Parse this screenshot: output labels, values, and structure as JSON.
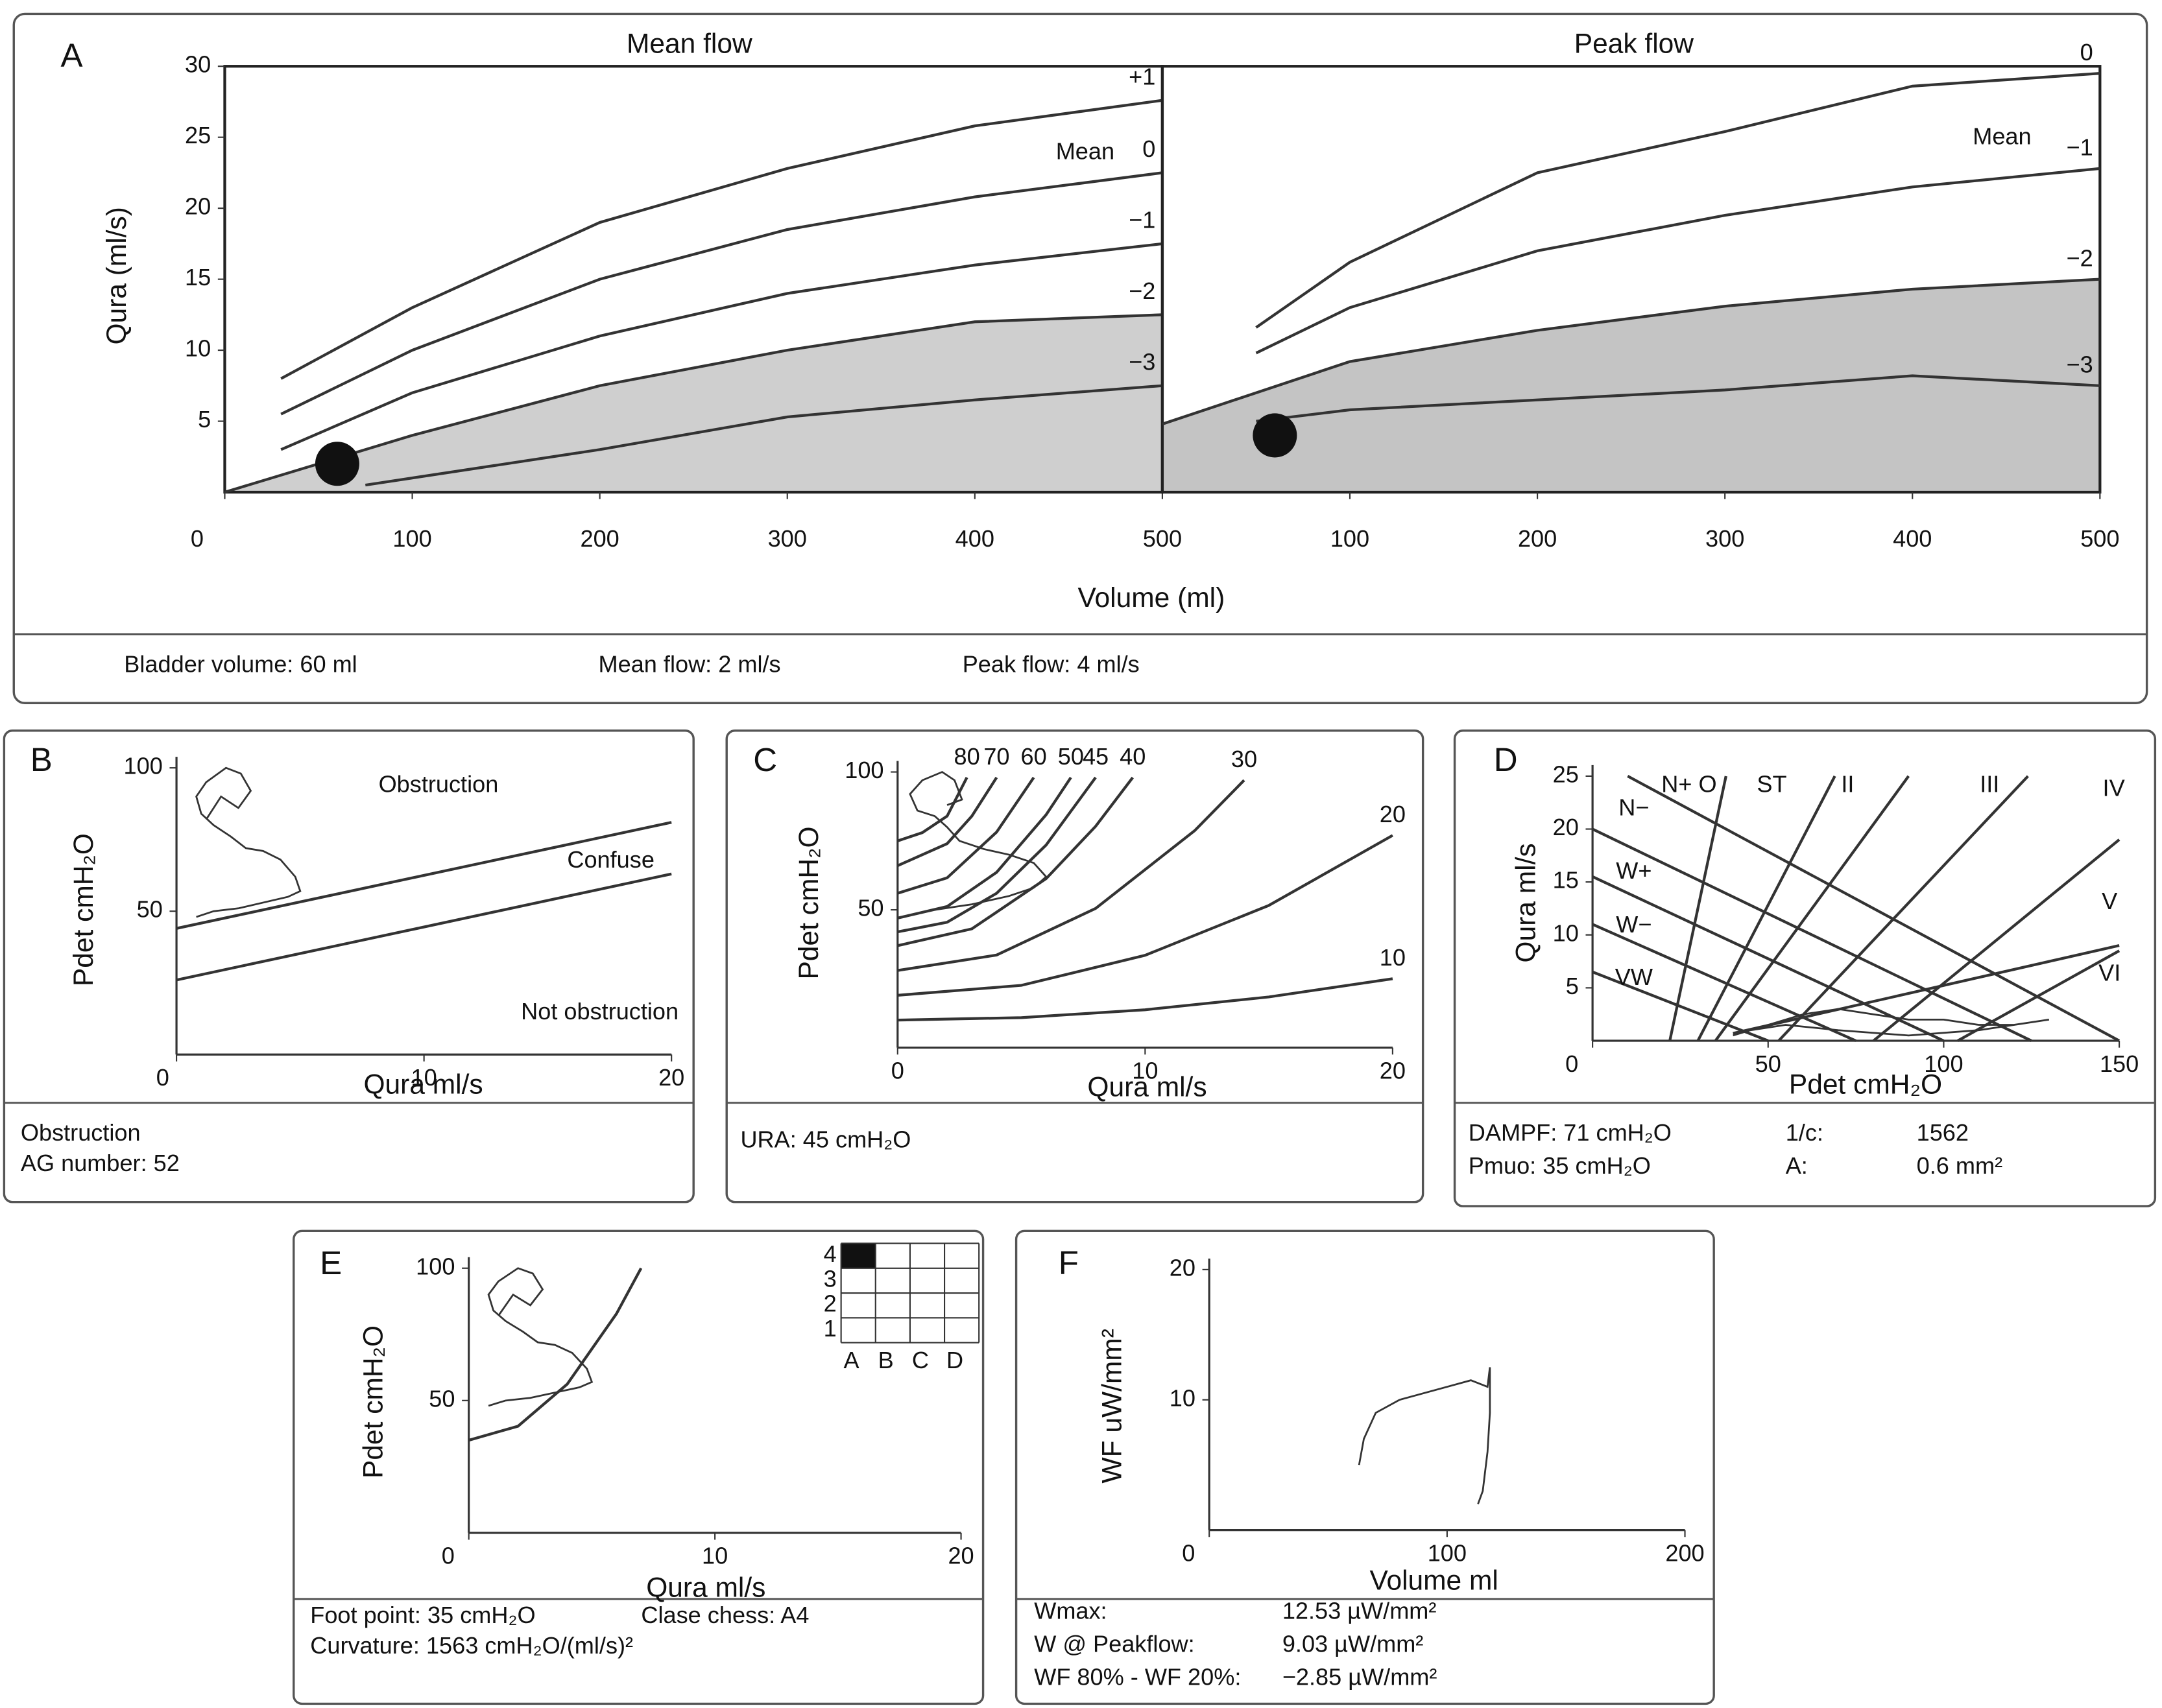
{
  "chart_data": [
    {
      "type": "line",
      "panel": "A",
      "title": "Mean flow",
      "ylabel": "Qura (ml/s)",
      "xlabel": "Volume (ml)",
      "xlim": [
        0,
        500
      ],
      "ylim": [
        0,
        30
      ],
      "xticks": [
        0,
        100,
        200,
        300,
        400,
        500
      ],
      "yticks": [
        5,
        10,
        15,
        20,
        25,
        30
      ],
      "series": [
        {
          "name": "+1",
          "x": [
            30,
            100,
            200,
            300,
            400,
            500
          ],
          "values": [
            8,
            13,
            19,
            22.8,
            25.8,
            27.6
          ]
        },
        {
          "name": "0",
          "x": [
            30,
            100,
            200,
            300,
            400,
            500
          ],
          "values": [
            5.5,
            10,
            15,
            18.5,
            20.8,
            22.5
          ]
        },
        {
          "name": "−1",
          "x": [
            30,
            100,
            200,
            300,
            400,
            500
          ],
          "values": [
            3,
            7,
            11,
            14,
            16,
            17.5
          ]
        },
        {
          "name": "−2",
          "fill": "#cfcfcf",
          "x": [
            0,
            100,
            200,
            300,
            400,
            500
          ],
          "values": [
            0,
            4,
            7.5,
            10,
            12,
            12.5
          ]
        },
        {
          "name": "−3",
          "x": [
            75,
            200,
            300,
            400,
            500
          ],
          "values": [
            0.5,
            3,
            5.3,
            6.5,
            7.5
          ]
        }
      ],
      "point": {
        "x": 60,
        "y": 2
      },
      "annotations": [
        "Mean"
      ],
      "info": [
        [
          "Bladder volume: 60 ml",
          "Mean flow: 2 ml/s",
          "Peak flow: 4 ml/s"
        ]
      ]
    },
    {
      "type": "line",
      "title": "Peak flow",
      "xlim": [
        0,
        500
      ],
      "ylim": [
        0,
        30
      ],
      "xticks": [
        100,
        200,
        300,
        400,
        500
      ],
      "series": [
        {
          "name": "0",
          "x": [
            50,
            100,
            200,
            300,
            400,
            500
          ],
          "values": [
            11.6,
            16.2,
            22.5,
            25.4,
            28.6,
            29.5
          ]
        },
        {
          "name": "−1",
          "x": [
            50,
            100,
            200,
            300,
            400,
            500
          ],
          "values": [
            9.8,
            13,
            17,
            19.5,
            21.5,
            22.8
          ]
        },
        {
          "name": "−2",
          "fill": "#c4c4c4",
          "x": [
            0,
            100,
            200,
            300,
            400,
            500
          ],
          "values": [
            4.8,
            9.2,
            11.4,
            13.1,
            14.3,
            15
          ]
        },
        {
          "name": "−3",
          "x": [
            50,
            100,
            200,
            300,
            400,
            500
          ],
          "values": [
            5,
            5.8,
            6.5,
            7.2,
            8.2,
            7.5
          ]
        }
      ],
      "point": {
        "x": 60,
        "y": 4
      },
      "annotations": [
        "Mean"
      ]
    },
    {
      "type": "line",
      "panel": "B",
      "ylabel": "Pdet cmH₂O",
      "xlabel": "Qura ml/s",
      "xlim": [
        0,
        20
      ],
      "ylim": [
        0,
        100
      ],
      "xticks": [
        0,
        10,
        20
      ],
      "yticks": [
        50,
        100
      ],
      "series": [
        {
          "x": [
            0,
            20
          ],
          "values": [
            44,
            81
          ]
        },
        {
          "x": [
            0,
            20
          ],
          "values": [
            26,
            63
          ]
        }
      ],
      "trace": {
        "x": [
          0.8,
          1.5,
          2.5,
          3.5,
          4.5,
          5,
          4.8,
          4.2,
          3.5,
          2.8,
          2.2,
          1.5,
          1,
          0.8,
          1.2,
          2,
          2.6,
          3,
          2.5,
          1.8,
          1.2
        ],
        "values": [
          48,
          50,
          51,
          53,
          55,
          57,
          62,
          68,
          71,
          72,
          76,
          80,
          84,
          90,
          95,
          100,
          98,
          92,
          86,
          90,
          82
        ]
      },
      "annotations": [
        "Obstruction",
        "Confuse",
        "Not obstruction"
      ],
      "info": [
        [
          "Obstruction"
        ],
        [
          "AG number: 52"
        ]
      ]
    },
    {
      "type": "line",
      "panel": "C",
      "ylabel": "Pdet cmH₂O",
      "xlabel": "Qura ml/s",
      "xlim": [
        0,
        20
      ],
      "ylim": [
        0,
        100
      ],
      "xticks": [
        0,
        10,
        20
      ],
      "yticks": [
        50,
        100
      ],
      "series": [
        {
          "name": "80",
          "x": [
            0,
            1,
            2,
            2.8
          ],
          "values": [
            75,
            78,
            84,
            98
          ]
        },
        {
          "name": "70",
          "x": [
            0,
            2,
            3,
            4
          ],
          "values": [
            66,
            74,
            84,
            98
          ]
        },
        {
          "name": "60",
          "x": [
            0,
            2,
            4,
            5.5
          ],
          "values": [
            56,
            61.6,
            78.2,
            98
          ]
        },
        {
          "name": "50",
          "x": [
            0,
            2,
            4,
            6,
            7
          ],
          "values": [
            47,
            51.2,
            63.6,
            84.5,
            98
          ]
        },
        {
          "name": "45",
          "x": [
            0,
            2,
            4,
            6,
            8
          ],
          "values": [
            42,
            45.5,
            56,
            73.5,
            98
          ]
        },
        {
          "name": "40",
          "x": [
            0,
            3,
            6,
            8,
            9.5
          ],
          "values": [
            37,
            43.1,
            61.3,
            80.3,
            98
          ]
        },
        {
          "name": "30",
          "x": [
            0,
            4,
            8,
            12,
            14
          ],
          "values": [
            28,
            33.6,
            50.5,
            78.7,
            97
          ]
        },
        {
          "name": "20",
          "x": [
            0,
            5,
            10,
            15,
            20
          ],
          "values": [
            19,
            22.6,
            33.5,
            51.6,
            77
          ]
        },
        {
          "name": "10",
          "x": [
            0,
            5,
            10,
            15,
            20
          ],
          "values": [
            10,
            10.9,
            13.75,
            18.4,
            25
          ]
        }
      ],
      "trace": {
        "x": [
          0.5,
          1.5,
          3,
          4.5,
          5.5,
          6,
          5.5,
          4.5,
          3.5,
          2.5,
          2,
          1.5,
          0.8,
          0.5,
          1,
          1.8,
          2.3,
          2.6,
          2
        ],
        "values": [
          48,
          50,
          52,
          55,
          58,
          62,
          67,
          70,
          72,
          75,
          80,
          84,
          86,
          92,
          97,
          100,
          97,
          90,
          88
        ]
      },
      "info": [
        [
          "URA: 45 cmH₂O"
        ]
      ]
    },
    {
      "type": "line",
      "panel": "D",
      "ylabel": "Qura ml/s",
      "xlabel": "Pdet cmH₂O",
      "xlim": [
        0,
        150
      ],
      "ylim": [
        0,
        25
      ],
      "xticks": [
        0,
        50,
        100,
        150
      ],
      "yticks": [
        5,
        10,
        15,
        20,
        25
      ],
      "series": [
        {
          "x": [
            22,
            38
          ],
          "values": [
            0,
            25
          ]
        },
        {
          "x": [
            30,
            69
          ],
          "values": [
            0,
            25
          ]
        },
        {
          "x": [
            35,
            90
          ],
          "values": [
            0,
            25
          ]
        },
        {
          "x": [
            53,
            124
          ],
          "values": [
            0,
            25
          ]
        },
        {
          "x": [
            80,
            150
          ],
          "values": [
            0,
            19
          ]
        },
        {
          "x": [
            104,
            150
          ],
          "values": [
            0,
            8.5
          ]
        },
        {
          "x": [
            10,
            150
          ],
          "values": [
            25,
            0
          ]
        },
        {
          "x": [
            0,
            125
          ],
          "values": [
            20,
            0
          ]
        },
        {
          "x": [
            0,
            100
          ],
          "values": [
            15.5,
            0
          ]
        },
        {
          "x": [
            0,
            75
          ],
          "values": [
            11,
            0
          ]
        },
        {
          "x": [
            0,
            50
          ],
          "values": [
            6.5,
            0
          ]
        },
        {
          "x": [
            40,
            150
          ],
          "values": [
            0.7,
            9
          ]
        }
      ],
      "trace": {
        "x": [
          40,
          50,
          60,
          70,
          80,
          90,
          100,
          110,
          120,
          130,
          110,
          90,
          70,
          55,
          45,
          40
        ],
        "values": [
          0.5,
          1.5,
          2.5,
          3,
          2.5,
          2,
          2,
          1.5,
          1.5,
          2,
          1,
          0.5,
          1,
          1.5,
          1,
          0.5
        ]
      },
      "annotations": [
        "N+ O",
        "ST",
        "II",
        "III",
        "IV",
        "N−",
        "W+",
        "W−",
        "VW",
        "V",
        "VI"
      ],
      "info": [
        [
          "DAMPF: 71 cmH₂O",
          "1/c:",
          "1562"
        ],
        [
          "Pmuo:   35 cmH₂O",
          "A:",
          "0.6 mm²"
        ]
      ]
    },
    {
      "type": "line",
      "panel": "E",
      "ylabel": "Pdet cmH₂O",
      "xlabel": "Qura ml/s",
      "xlim": [
        0,
        20
      ],
      "ylim": [
        0,
        100
      ],
      "xticks": [
        0,
        10,
        20
      ],
      "yticks": [
        50,
        100
      ],
      "series": [
        {
          "x": [
            0,
            2,
            4,
            6,
            7
          ],
          "values": [
            35,
            40.3,
            56.2,
            82.8,
            100
          ]
        }
      ],
      "trace": {
        "x": [
          0.8,
          1.5,
          2.5,
          3.5,
          4.5,
          5,
          4.8,
          4.2,
          3.5,
          2.8,
          2.2,
          1.5,
          1,
          0.8,
          1.2,
          2,
          2.6,
          3,
          2.5,
          1.8,
          1.2
        ],
        "values": [
          48,
          50,
          51,
          53,
          55,
          57,
          62,
          68,
          71,
          72,
          76,
          80,
          84,
          90,
          95,
          100,
          98,
          92,
          86,
          90,
          82
        ]
      },
      "chess": {
        "rows": [
          "1",
          "2",
          "3",
          "4"
        ],
        "cols": [
          "A",
          "B",
          "C",
          "D"
        ],
        "filled": {
          "col": "A",
          "row": "4"
        }
      },
      "info": [
        [
          "Foot point:  35 cmH₂O",
          "Clase chess:  A4"
        ],
        [
          "Curvature:  1563 cmH₂O/(ml/s)²"
        ]
      ]
    },
    {
      "type": "line",
      "panel": "F",
      "ylabel": "WF uW/mm²",
      "xlabel": "Volume ml",
      "xlim": [
        0,
        200
      ],
      "ylim": [
        0,
        20
      ],
      "xticks": [
        0,
        100,
        200
      ],
      "yticks": [
        10,
        20
      ],
      "trace": {
        "x": [
          63,
          65,
          70,
          80,
          90,
          100,
          110,
          117,
          118,
          118,
          117,
          115,
          113
        ],
        "values": [
          5,
          7,
          9,
          10,
          10.5,
          11,
          11.5,
          11,
          12.5,
          9,
          6,
          3,
          2
        ]
      },
      "info": [
        [
          "Wmax:",
          "12.53 µW/mm²"
        ],
        [
          "W @ Peakflow:",
          "9.03 µW/mm²"
        ],
        [
          "WF 80% - WF 20%:",
          "−2.85 µW/mm²"
        ]
      ]
    }
  ]
}
